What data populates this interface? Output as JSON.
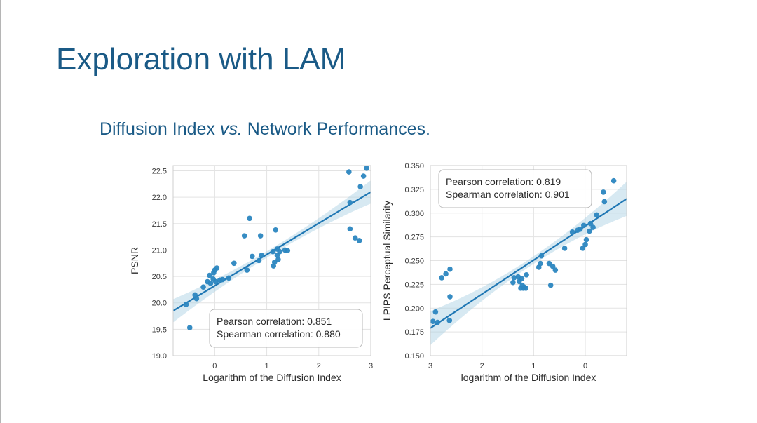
{
  "slide": {
    "title": "Exploration with LAM",
    "subtitle_pre": "Diffusion Index ",
    "subtitle_em": "vs.",
    "subtitle_post": " Network Performances."
  },
  "colors": {
    "accent": "#1a5a86",
    "point": "#2b86c0",
    "line": "#1f77b4",
    "band": "#a6cee3"
  },
  "chart_data": [
    {
      "type": "scatter",
      "xlabel": "Logarithm of the Diffusion Index",
      "ylabel": "PSNR",
      "xlim": [
        -0.8,
        3.0
      ],
      "ylim": [
        19.0,
        22.6
      ],
      "xticks": [
        0,
        1,
        2,
        3
      ],
      "xtick_labels": [
        "0",
        "1",
        "2",
        "3"
      ],
      "yticks": [
        19.0,
        19.5,
        20.0,
        20.5,
        21.0,
        21.5,
        22.0,
        22.5
      ],
      "ytick_labels": [
        "19.0",
        "19.5",
        "20.0",
        "20.5",
        "21.0",
        "21.5",
        "22.0",
        "22.5"
      ],
      "grid": true,
      "regression": {
        "x0": -0.8,
        "y0": 19.85,
        "x1": 3.0,
        "y1": 22.1,
        "ci_halfwidth_ends": 0.22,
        "ci_halfwidth_mid": 0.06
      },
      "legend": {
        "placement": "lower-right",
        "lines": [
          "Pearson correlation: 0.851",
          "Spearman correlation: 0.880"
        ]
      },
      "points": [
        [
          -0.48,
          19.53
        ],
        [
          -0.55,
          19.97
        ],
        [
          -0.38,
          20.15
        ],
        [
          -0.35,
          20.08
        ],
        [
          -0.22,
          20.3
        ],
        [
          -0.14,
          20.4
        ],
        [
          -0.1,
          20.52
        ],
        [
          -0.08,
          20.37
        ],
        [
          -0.03,
          20.45
        ],
        [
          -0.02,
          20.57
        ],
        [
          0.0,
          20.62
        ],
        [
          0.04,
          20.66
        ],
        [
          0.02,
          20.4
        ],
        [
          0.1,
          20.43
        ],
        [
          0.15,
          20.44
        ],
        [
          0.27,
          20.47
        ],
        [
          0.37,
          20.75
        ],
        [
          0.57,
          21.27
        ],
        [
          0.62,
          20.62
        ],
        [
          0.67,
          21.6
        ],
        [
          0.72,
          20.88
        ],
        [
          0.85,
          20.8
        ],
        [
          0.88,
          21.27
        ],
        [
          0.9,
          20.9
        ],
        [
          1.12,
          20.97
        ],
        [
          1.13,
          20.7
        ],
        [
          1.15,
          20.77
        ],
        [
          1.17,
          21.38
        ],
        [
          1.2,
          20.9
        ],
        [
          1.2,
          21.02
        ],
        [
          1.22,
          20.82
        ],
        [
          1.25,
          20.97
        ],
        [
          1.35,
          21.0
        ],
        [
          1.4,
          20.99
        ],
        [
          2.58,
          22.48
        ],
        [
          2.6,
          21.9
        ],
        [
          2.6,
          21.4
        ],
        [
          2.7,
          21.23
        ],
        [
          2.78,
          21.18
        ],
        [
          2.8,
          22.2
        ],
        [
          2.86,
          22.4
        ],
        [
          2.92,
          22.55
        ]
      ]
    },
    {
      "type": "scatter",
      "xlabel": "logarithm of the Diffusion Index",
      "ylabel": "LPIPS Perceptual Similarity",
      "xlim": [
        3.0,
        -0.8
      ],
      "ylim": [
        0.15,
        0.35
      ],
      "xticks": [
        3,
        2,
        1,
        0
      ],
      "xtick_labels": [
        "3",
        "2",
        "1",
        "0"
      ],
      "yticks": [
        0.15,
        0.175,
        0.2,
        0.225,
        0.25,
        0.275,
        0.3,
        0.325,
        0.35
      ],
      "ytick_labels": [
        "0.150",
        "0.175",
        "0.200",
        "0.225",
        "0.250",
        "0.275",
        "0.300",
        "0.325",
        "0.350"
      ],
      "grid": true,
      "regression": {
        "x0": 3.0,
        "y0": 0.179,
        "x1": -0.8,
        "y1": 0.315,
        "ci_halfwidth_ends": 0.018,
        "ci_halfwidth_mid": 0.004
      },
      "legend": {
        "placement": "upper-left",
        "lines": [
          "Pearson correlation: 0.819",
          "Spearman correlation: 0.901"
        ]
      },
      "points": [
        [
          2.95,
          0.186
        ],
        [
          2.9,
          0.196
        ],
        [
          2.86,
          0.185
        ],
        [
          2.78,
          0.232
        ],
        [
          2.7,
          0.236
        ],
        [
          2.62,
          0.241
        ],
        [
          2.62,
          0.212
        ],
        [
          2.63,
          0.187
        ],
        [
          1.4,
          0.227
        ],
        [
          1.38,
          0.232
        ],
        [
          1.3,
          0.233
        ],
        [
          1.28,
          0.228
        ],
        [
          1.25,
          0.221
        ],
        [
          1.23,
          0.231
        ],
        [
          1.22,
          0.224
        ],
        [
          1.2,
          0.221
        ],
        [
          1.18,
          0.222
        ],
        [
          1.15,
          0.221
        ],
        [
          1.14,
          0.235
        ],
        [
          0.9,
          0.243
        ],
        [
          0.87,
          0.247
        ],
        [
          0.85,
          0.255
        ],
        [
          0.7,
          0.247
        ],
        [
          0.67,
          0.224
        ],
        [
          0.63,
          0.244
        ],
        [
          0.58,
          0.24
        ],
        [
          0.4,
          0.263
        ],
        [
          0.25,
          0.28
        ],
        [
          0.15,
          0.282
        ],
        [
          0.1,
          0.283
        ],
        [
          0.05,
          0.263
        ],
        [
          0.03,
          0.287
        ],
        [
          0.0,
          0.267
        ],
        [
          -0.02,
          0.272
        ],
        [
          -0.08,
          0.281
        ],
        [
          -0.1,
          0.289
        ],
        [
          -0.15,
          0.285
        ],
        [
          -0.22,
          0.298
        ],
        [
          -0.35,
          0.322
        ],
        [
          -0.37,
          0.312
        ],
        [
          -0.55,
          0.334
        ]
      ]
    }
  ]
}
